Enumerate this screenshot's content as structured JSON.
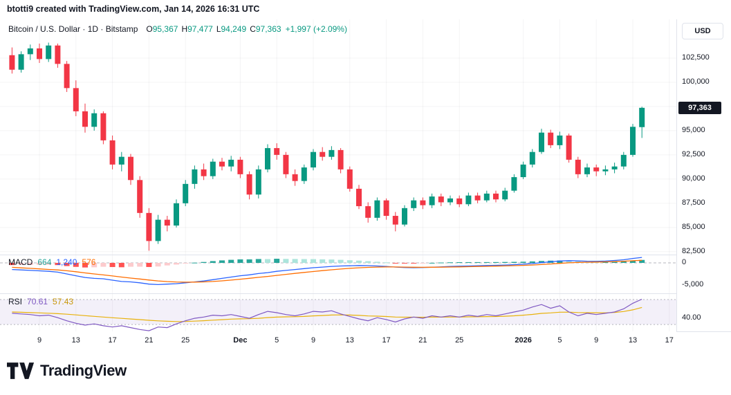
{
  "header": {
    "attribution": "btotti9 created with TradingView.com, Jan 14, 2026 16:31 UTC"
  },
  "legend": {
    "title": "Bitcoin / U.S. Dollar · 1D · Bitstamp",
    "ohlc": [
      {
        "label": "O",
        "value": "95,367"
      },
      {
        "label": "H",
        "value": "97,477"
      },
      {
        "label": "L",
        "value": "94,249"
      },
      {
        "label": "C",
        "value": "97,363"
      }
    ],
    "change": "+1,997 (+2.09%)"
  },
  "price_axis": {
    "currency_button": "USD",
    "last_price_badge": "97,363",
    "labels": [
      {
        "text": "102,500",
        "price": 102500
      },
      {
        "text": "100,000",
        "price": 100000
      },
      {
        "text": "95,000",
        "price": 95000
      },
      {
        "text": "92,500",
        "price": 92500
      },
      {
        "text": "90,000",
        "price": 90000
      },
      {
        "text": "87,500",
        "price": 87500
      },
      {
        "text": "85,000",
        "price": 85000
      },
      {
        "text": "82,500",
        "price": 82500
      }
    ]
  },
  "macd_panel": {
    "label": "MACD",
    "values": [
      {
        "text": "664",
        "color": "#26A69A"
      },
      {
        "text": "1,240",
        "color": "#2962FF"
      },
      {
        "text": "576",
        "color": "#FF6D00"
      }
    ],
    "axis_labels": [
      {
        "text": "0",
        "value": 0
      },
      {
        "text": "-5,000",
        "value": -5000
      }
    ]
  },
  "rsi_panel": {
    "label": "RSI",
    "values": [
      {
        "text": "70.61",
        "color": "#7E57C2"
      },
      {
        "text": "57.43",
        "color": "#C9970A"
      }
    ],
    "axis_labels": [
      {
        "text": "40.00",
        "value": 40
      }
    ]
  },
  "time_axis": {
    "labels": [
      {
        "text": "9",
        "index": 3,
        "bold": false
      },
      {
        "text": "13",
        "index": 7,
        "bold": false
      },
      {
        "text": "17",
        "index": 11,
        "bold": false
      },
      {
        "text": "21",
        "index": 15,
        "bold": false
      },
      {
        "text": "25",
        "index": 19,
        "bold": false
      },
      {
        "text": "Dec",
        "index": 25,
        "bold": true
      },
      {
        "text": "5",
        "index": 29,
        "bold": false
      },
      {
        "text": "9",
        "index": 33,
        "bold": false
      },
      {
        "text": "13",
        "index": 37,
        "bold": false
      },
      {
        "text": "17",
        "index": 41,
        "bold": false
      },
      {
        "text": "21",
        "index": 45,
        "bold": false
      },
      {
        "text": "25",
        "index": 49,
        "bold": false
      },
      {
        "text": "2026",
        "index": 56,
        "bold": true
      },
      {
        "text": "5",
        "index": 60,
        "bold": false
      },
      {
        "text": "9",
        "index": 64,
        "bold": false
      },
      {
        "text": "13",
        "index": 68,
        "bold": false
      },
      {
        "text": "17",
        "index": 72,
        "bold": false
      }
    ]
  },
  "footer": {
    "logo_text": "TradingView"
  },
  "colors": {
    "up": "#089981",
    "down": "#F23645",
    "macd_line": "#2962FF",
    "signal_line": "#FF6D00",
    "hist_pos": "#26A69A",
    "hist_pos_weak": "#ACE5DC",
    "hist_neg": "#FF5252",
    "hist_neg_weak": "#FCCBCD",
    "rsi_line": "#7E57C2",
    "rsi_ma_line": "#E8B10A",
    "rsi_band_fill": "rgba(126,87,194,0.09)",
    "band_dash": "#787B86",
    "grid": "rgba(42,46,57,0.05)",
    "zero_dash": "#9598A1",
    "text": "#131722",
    "badge_bg": "#131722"
  },
  "chart_data": {
    "type": "candlestick",
    "symbol": "Bitcoin / U.S. Dollar",
    "exchange": "Bitstamp",
    "interval": "1D",
    "start_date": "2025-11-06",
    "last_ohlc": {
      "open": 95367,
      "high": 97477,
      "low": 94249,
      "close": 97363,
      "change": 1997,
      "change_pct": 2.09
    },
    "price_scale": {
      "min": 82200,
      "max": 106500,
      "gridlines": [
        102500,
        100000,
        97500,
        95000,
        92500,
        90000,
        87500,
        85000,
        82500
      ]
    },
    "candles": [
      [
        102800,
        103600,
        100900,
        101300
      ],
      [
        101300,
        103200,
        101000,
        102900
      ],
      [
        102900,
        103900,
        102300,
        103500
      ],
      [
        103500,
        104000,
        102000,
        102400
      ],
      [
        102400,
        104100,
        102100,
        103800
      ],
      [
        103800,
        104000,
        101500,
        101900
      ],
      [
        101900,
        102200,
        99000,
        99400
      ],
      [
        99400,
        100200,
        96500,
        97000
      ],
      [
        97000,
        97800,
        94800,
        95400
      ],
      [
        95400,
        97200,
        95000,
        96800
      ],
      [
        96800,
        97000,
        93600,
        94000
      ],
      [
        94000,
        94500,
        91000,
        91500
      ],
      [
        91500,
        92800,
        90800,
        92300
      ],
      [
        92300,
        92600,
        89400,
        89900
      ],
      [
        89900,
        90300,
        86000,
        86500
      ],
      [
        86500,
        87000,
        82600,
        83600
      ],
      [
        83600,
        86300,
        83300,
        85800
      ],
      [
        85800,
        86200,
        84600,
        85200
      ],
      [
        85200,
        87900,
        85000,
        87500
      ],
      [
        87500,
        89900,
        87200,
        89500
      ],
      [
        89500,
        91400,
        89000,
        91000
      ],
      [
        91000,
        91600,
        89900,
        90300
      ],
      [
        90300,
        92100,
        90000,
        91800
      ],
      [
        91800,
        92200,
        90900,
        91300
      ],
      [
        91300,
        92400,
        90800,
        92000
      ],
      [
        92000,
        92300,
        90100,
        90500
      ],
      [
        90500,
        90800,
        87900,
        88400
      ],
      [
        88400,
        91400,
        88000,
        91000
      ],
      [
        91000,
        93600,
        90700,
        93200
      ],
      [
        93200,
        93700,
        92000,
        92500
      ],
      [
        92500,
        92800,
        90100,
        90500
      ],
      [
        90500,
        91000,
        89300,
        89800
      ],
      [
        89800,
        91500,
        89500,
        91200
      ],
      [
        91200,
        93100,
        90900,
        92800
      ],
      [
        92800,
        93300,
        91900,
        92300
      ],
      [
        92300,
        93400,
        92000,
        93000
      ],
      [
        93000,
        93200,
        90600,
        91000
      ],
      [
        91000,
        91300,
        88700,
        89000
      ],
      [
        89000,
        89400,
        86900,
        87200
      ],
      [
        87200,
        87600,
        85500,
        86000
      ],
      [
        86000,
        88100,
        85700,
        87800
      ],
      [
        87800,
        88000,
        85800,
        86200
      ],
      [
        86200,
        86600,
        84600,
        85300
      ],
      [
        85300,
        87300,
        85100,
        87000
      ],
      [
        87000,
        88100,
        86700,
        87800
      ],
      [
        87800,
        88100,
        86900,
        87300
      ],
      [
        87300,
        88500,
        87000,
        88200
      ],
      [
        88200,
        88500,
        87200,
        87600
      ],
      [
        87600,
        88300,
        87300,
        88000
      ],
      [
        88000,
        88300,
        87100,
        87400
      ],
      [
        87400,
        88600,
        87200,
        88300
      ],
      [
        88300,
        88600,
        87500,
        87800
      ],
      [
        87800,
        88800,
        87600,
        88500
      ],
      [
        88500,
        88800,
        87600,
        87900
      ],
      [
        87900,
        89100,
        87700,
        88800
      ],
      [
        88800,
        90500,
        88600,
        90200
      ],
      [
        90200,
        91800,
        90000,
        91500
      ],
      [
        91500,
        93100,
        91200,
        92800
      ],
      [
        92800,
        95200,
        92600,
        94800
      ],
      [
        94800,
        95100,
        93200,
        93500
      ],
      [
        93500,
        94900,
        93100,
        94500
      ],
      [
        94500,
        94700,
        91700,
        92000
      ],
      [
        92000,
        92300,
        90100,
        90500
      ],
      [
        90500,
        91600,
        90200,
        91200
      ],
      [
        91200,
        91500,
        90300,
        90800
      ],
      [
        90800,
        91400,
        90400,
        91000
      ],
      [
        91000,
        91700,
        90600,
        91300
      ],
      [
        91300,
        92800,
        91000,
        92500
      ],
      [
        92500,
        95700,
        92300,
        95400
      ],
      [
        95367,
        97477,
        94249,
        97363
      ]
    ],
    "macd": {
      "scale": {
        "min": -6875,
        "max": 1875
      },
      "macd": [
        -1500,
        -1600,
        -1700,
        -1800,
        -1900,
        -2100,
        -2500,
        -2900,
        -3300,
        -3500,
        -3600,
        -3900,
        -4200,
        -4300,
        -4500,
        -4800,
        -4900,
        -4800,
        -4700,
        -4500,
        -4300,
        -4100,
        -3800,
        -3500,
        -3200,
        -2900,
        -2700,
        -2400,
        -2200,
        -1900,
        -1700,
        -1500,
        -1300,
        -1100,
        -950,
        -800,
        -700,
        -650,
        -600,
        -620,
        -700,
        -800,
        -950,
        -1050,
        -1100,
        -1050,
        -980,
        -900,
        -820,
        -750,
        -700,
        -650,
        -600,
        -550,
        -480,
        -400,
        -300,
        -150,
        50,
        250,
        420,
        500,
        450,
        380,
        350,
        400,
        550,
        700,
        1000,
        1240
      ],
      "signal": [
        -1000,
        -1120,
        -1240,
        -1360,
        -1480,
        -1600,
        -1780,
        -2000,
        -2260,
        -2500,
        -2720,
        -2960,
        -3210,
        -3430,
        -3640,
        -3870,
        -4080,
        -4220,
        -4320,
        -4360,
        -4350,
        -4300,
        -4200,
        -4060,
        -3890,
        -3690,
        -3490,
        -3270,
        -3060,
        -2830,
        -2600,
        -2380,
        -2160,
        -1950,
        -1750,
        -1560,
        -1390,
        -1240,
        -1110,
        -1010,
        -950,
        -920,
        -925,
        -950,
        -980,
        -995,
        -990,
        -975,
        -945,
        -905,
        -865,
        -820,
        -775,
        -730,
        -680,
        -625,
        -560,
        -480,
        -375,
        -250,
        -115,
        10,
        95,
        150,
        190,
        230,
        295,
        380,
        490,
        576
      ],
      "current": {
        "histogram": 664,
        "macd": 1240,
        "signal": 576
      }
    },
    "rsi": {
      "scale": {
        "min": 19,
        "max": 80
      },
      "band": [
        30,
        70
      ],
      "rsi": [
        48,
        47,
        46,
        44,
        45,
        41,
        36,
        32,
        29,
        31,
        28,
        26,
        28,
        25,
        22,
        20,
        26,
        25,
        31,
        36,
        40,
        42,
        45,
        44,
        46,
        43,
        40,
        46,
        51,
        49,
        46,
        44,
        47,
        51,
        50,
        52,
        47,
        43,
        39,
        36,
        41,
        38,
        34,
        39,
        42,
        40,
        44,
        42,
        44,
        42,
        45,
        43,
        46,
        44,
        47,
        50,
        53,
        58,
        62,
        56,
        60,
        50,
        44,
        48,
        46,
        48,
        50,
        55,
        64,
        70.61
      ],
      "ma": [
        50,
        49.6,
        49.1,
        48.6,
        48.1,
        47.4,
        46.5,
        45.4,
        44.2,
        43.1,
        42,
        40.9,
        39.9,
        38.9,
        37.8,
        36.7,
        35.9,
        35.2,
        34.8,
        34.9,
        35.4,
        36.1,
        37,
        37.7,
        38.6,
        39.1,
        39.3,
        40,
        41.1,
        41.9,
        42.3,
        42.5,
        43,
        43.8,
        44.4,
        45.2,
        45.4,
        45.2,
        44.6,
        43.7,
        43.4,
        42.9,
        42,
        41.7,
        41.7,
        41.6,
        41.8,
        41.8,
        42,
        42,
        42.3,
        42.4,
        42.7,
        42.9,
        43.3,
        44,
        44.9,
        46.2,
        47.8,
        48.6,
        49.7,
        49.8,
        49.2,
        49,
        48.8,
        48.7,
        49.3,
        50.8,
        53.5,
        57.43
      ],
      "current": {
        "rsi": 70.61,
        "ma": 57.43
      }
    }
  }
}
